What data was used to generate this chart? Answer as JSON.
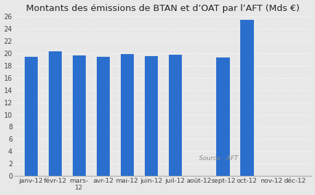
{
  "title": "Montants des émissions de BTAN et d’OAT par l’AFT (Mds €)",
  "categories": [
    "janv-12",
    "févr-12",
    "mars-\n12",
    "avr-12",
    "mai-12",
    "juin-12",
    "juil-12",
    "août-12",
    "sept-12",
    "oct-12",
    "nov-12",
    "déc-12"
  ],
  "values": [
    19.4,
    20.3,
    19.6,
    19.4,
    19.9,
    19.5,
    19.7,
    0,
    19.3,
    25.4,
    0,
    0
  ],
  "bar_color": "#2b6fce",
  "ylim": [
    0,
    26
  ],
  "yticks": [
    0,
    2,
    4,
    6,
    8,
    10,
    12,
    14,
    16,
    18,
    20,
    22,
    24,
    26
  ],
  "background_color": "#e8e8e8",
  "grid_color": "#ffffff",
  "source_text": "Source : AFT",
  "title_fontsize": 9.5
}
